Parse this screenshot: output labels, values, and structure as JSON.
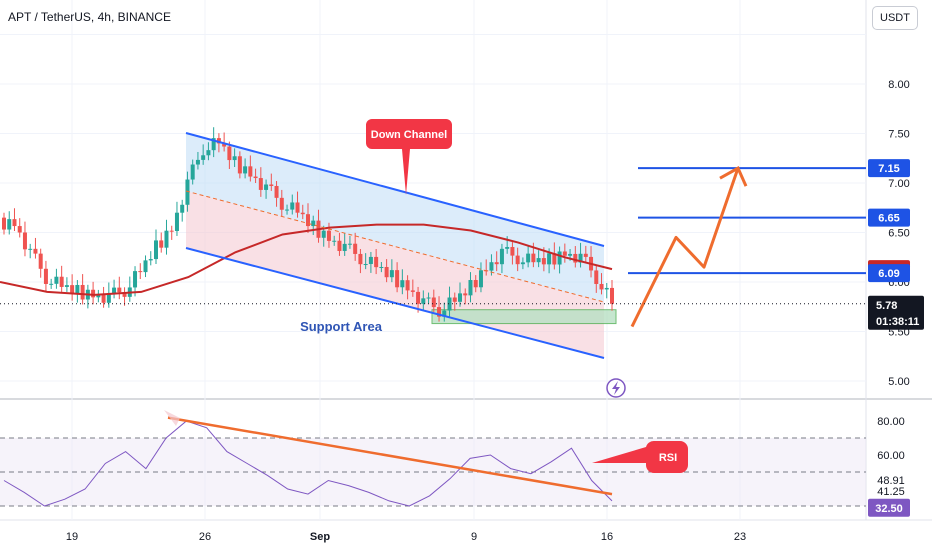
{
  "header": {
    "title": "APT / TetherUS, 4h, BINANCE",
    "currency_button": "USDT"
  },
  "colors": {
    "background": "#ffffff",
    "channel_line": "#2962ff",
    "ma_line": "#c62828",
    "target_line": "#1e53e5",
    "projection_arrow": "#ef6c2e",
    "rsi_line": "#7e57c2",
    "rsi_trend": "#ef6c2e",
    "callout": "#f23645",
    "support_fill": "#b8e0c4",
    "candle_up": "#26a69a",
    "candle_down": "#ef5350"
  },
  "chart_data": [
    {
      "type": "candlestick",
      "title": "APT / TetherUS, 4h, BINANCE",
      "x_tick_labels": [
        "19",
        "26",
        "Sep",
        "9",
        "16",
        "23"
      ],
      "y_tick_labels": [
        "8.00",
        "7.50",
        "7.00",
        "6.50",
        "6.00",
        "5.50",
        "5.00"
      ],
      "ylim": [
        4.8,
        8.5
      ],
      "series_close_approx": [
        6.6,
        6.3,
        6.05,
        5.95,
        5.9,
        5.88,
        5.85,
        5.92,
        6.1,
        6.35,
        6.55,
        7.0,
        7.35,
        7.4,
        7.2,
        7.1,
        6.95,
        6.8,
        6.7,
        6.55,
        6.45,
        6.35,
        6.25,
        6.15,
        6.05,
        5.95,
        5.8,
        5.72,
        5.8,
        5.95,
        6.15,
        6.3,
        6.25,
        6.2,
        6.22,
        6.3,
        6.25,
        6.05,
        5.78
      ],
      "moving_average_approx": [
        6.0,
        5.9,
        5.87,
        5.9,
        6.05,
        6.3,
        6.48,
        6.55,
        6.58,
        6.58,
        6.52,
        6.4,
        6.25,
        6.13
      ],
      "current_price": "5.78",
      "countdown": "01:38:11",
      "price_labels": [
        {
          "value": "7.15",
          "kind": "target"
        },
        {
          "value": "6.65",
          "kind": "target"
        },
        {
          "value": "6.13",
          "kind": "moving_average"
        },
        {
          "value": "6.09",
          "kind": "target"
        }
      ],
      "annotations": {
        "down_channel": "Down Channel",
        "support_area": "Support Area"
      },
      "target_levels": [
        7.15,
        6.65,
        6.09
      ],
      "support_zone": [
        5.58,
        5.72
      ]
    },
    {
      "type": "line",
      "title": "RSI",
      "y_tick_labels": [
        "80.00",
        "60.00",
        "48.91",
        "41.25",
        "32.50"
      ],
      "ylim": [
        20,
        85
      ],
      "bands": [
        70,
        50,
        30
      ],
      "series": [
        {
          "name": "RSI",
          "values": [
            45,
            38,
            30,
            34,
            40,
            55,
            62,
            52,
            70,
            80,
            76,
            62,
            55,
            48,
            40,
            37,
            45,
            42,
            38,
            33,
            30,
            36,
            46,
            58,
            60,
            52,
            49,
            56,
            64,
            45,
            33
          ]
        },
        {
          "name": "RSI MA",
          "values": [
            42,
            41,
            40,
            42,
            48,
            55,
            60,
            58,
            60,
            62,
            60,
            56,
            52,
            48,
            44,
            42,
            43,
            41,
            38,
            35,
            34,
            38,
            44,
            50,
            52,
            50,
            49,
            48.91,
            46,
            41.25
          ]
        }
      ],
      "current_value": "32.50",
      "ma_value": "48.91",
      "secondary_value": "41.25",
      "annotation": "RSI"
    }
  ]
}
